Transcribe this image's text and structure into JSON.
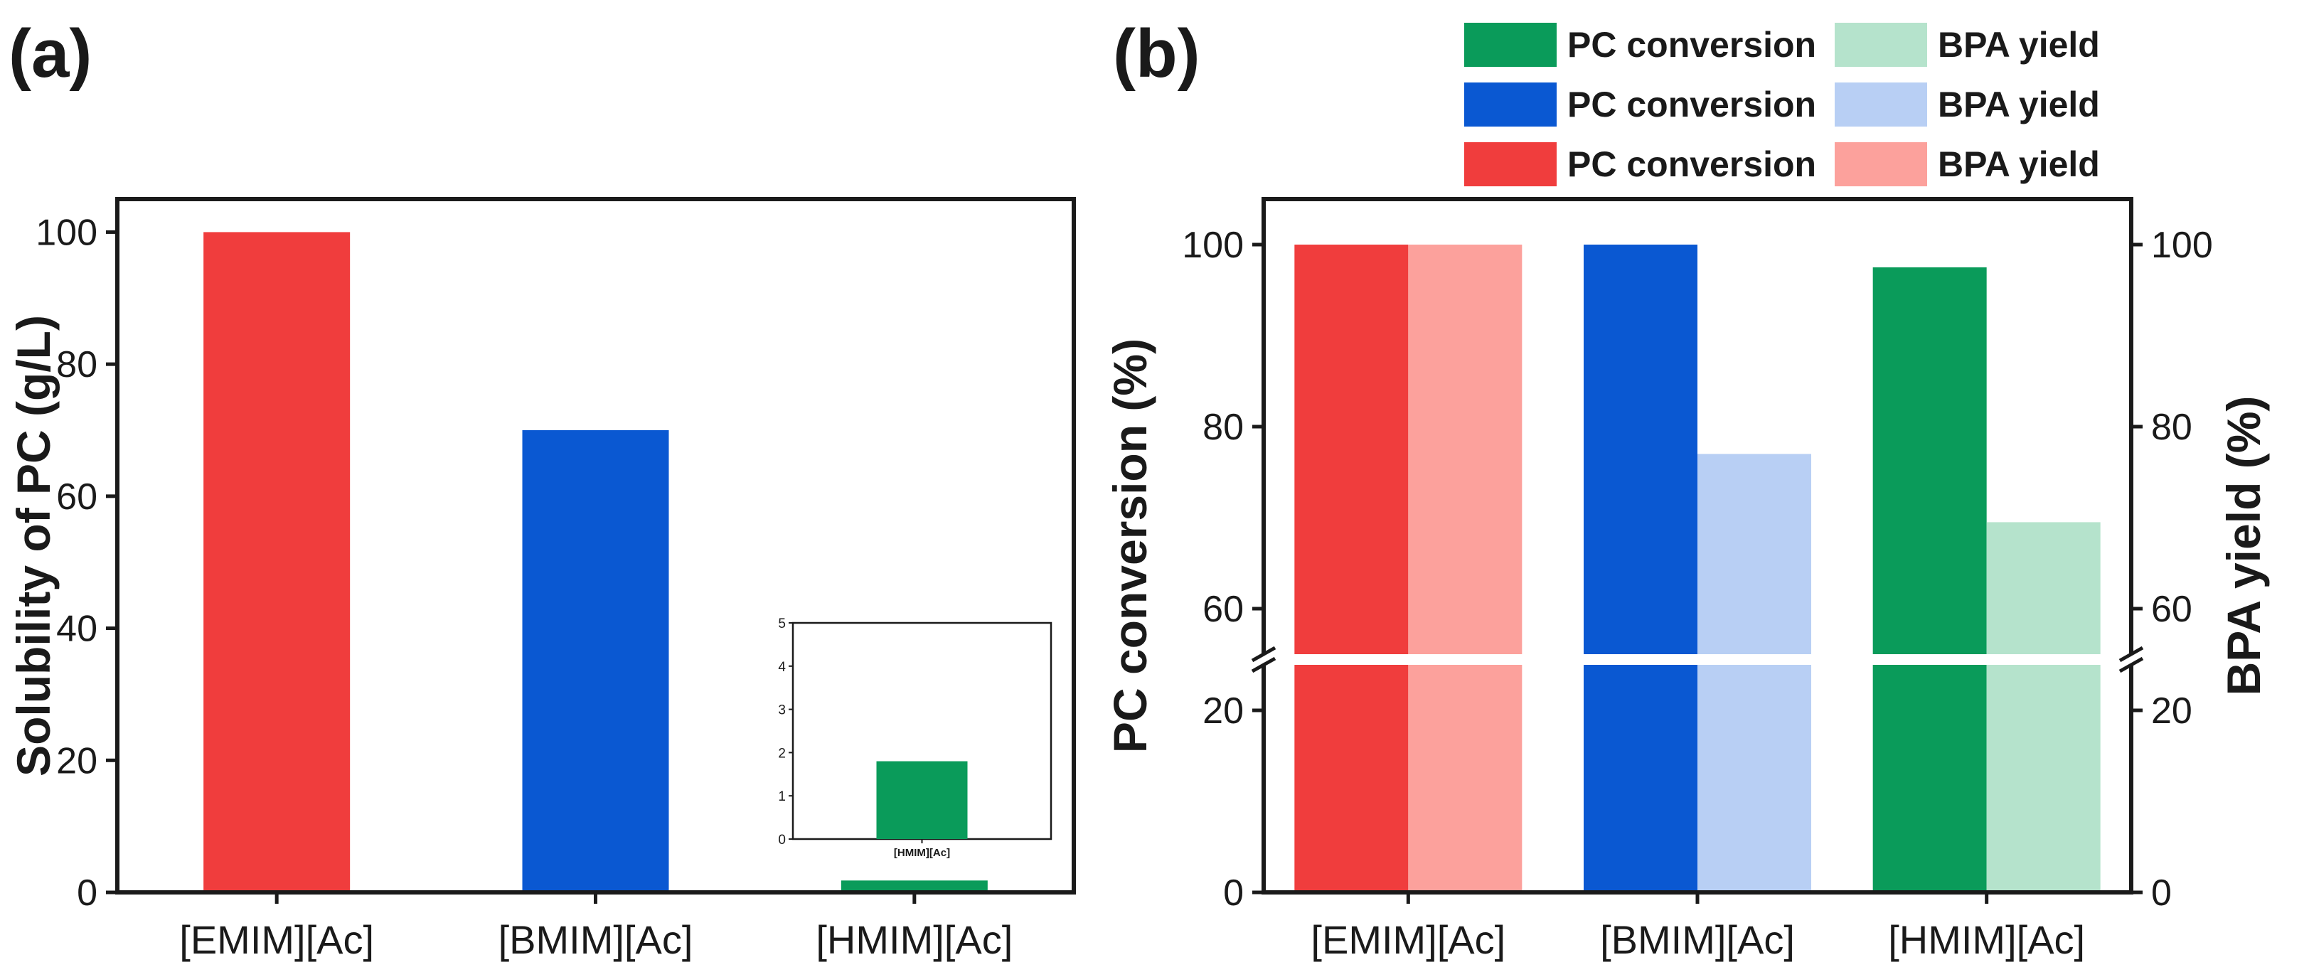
{
  "chart_data": [
    {
      "panel": "(a)",
      "type": "bar",
      "title": "",
      "xlabel": "",
      "ylabel": "Solubility of PC (g/L)",
      "categories": [
        "[EMIM][Ac]",
        "[BMIM][Ac]",
        "[HMIM][Ac]"
      ],
      "values": [
        100,
        70,
        1.8
      ],
      "colors": [
        "#f03d3d",
        "#0a58d2",
        "#0a9b5a"
      ],
      "ylim": [
        0,
        105
      ],
      "yticks": [
        "0",
        "20",
        "40",
        "60",
        "80",
        "100"
      ],
      "grid": false,
      "inset": {
        "type": "bar",
        "categories": [
          "[HMIM][Ac]"
        ],
        "values": [
          1.8
        ],
        "color": "#0a9b5a",
        "ylim": [
          0,
          5
        ],
        "yticks": [
          "0",
          "1",
          "2",
          "3",
          "4",
          "5"
        ]
      }
    },
    {
      "panel": "(b)",
      "type": "bar",
      "title": "",
      "xlabel": "",
      "ylabel": "PC conversion (%)",
      "ylabel_right": "BPA yield (%)",
      "categories": [
        "[EMIM][Ac]",
        "[BMIM][Ac]",
        "[HMIM][Ac]"
      ],
      "series": [
        {
          "name": "PC conversion",
          "values": [
            100,
            100,
            97.5
          ],
          "colors": [
            "#f03d3d",
            "#0a58d2",
            "#0a9b5a"
          ]
        },
        {
          "name": "BPA yield",
          "values": [
            100,
            77,
            69.5
          ],
          "colors": [
            "#fca19c",
            "#b8cff4",
            "#b5e3cc"
          ]
        }
      ],
      "axis_break": {
        "lower": [
          0,
          25
        ],
        "upper": [
          55,
          105
        ]
      },
      "yticks_lower": [
        "0",
        "20"
      ],
      "yticks_upper": [
        "60",
        "80",
        "100"
      ],
      "legend": {
        "placement": "top-right",
        "entries": [
          {
            "label": "PC conversion",
            "color": "#0a9b5a"
          },
          {
            "label": "BPA yield",
            "color": "#b5e3cc"
          },
          {
            "label": "PC conversion",
            "color": "#0a58d2"
          },
          {
            "label": "BPA yield",
            "color": "#b8cff4"
          },
          {
            "label": "PC conversion",
            "color": "#f03d3d"
          },
          {
            "label": "BPA yield",
            "color": "#fca19c"
          }
        ]
      },
      "grid": false
    }
  ]
}
